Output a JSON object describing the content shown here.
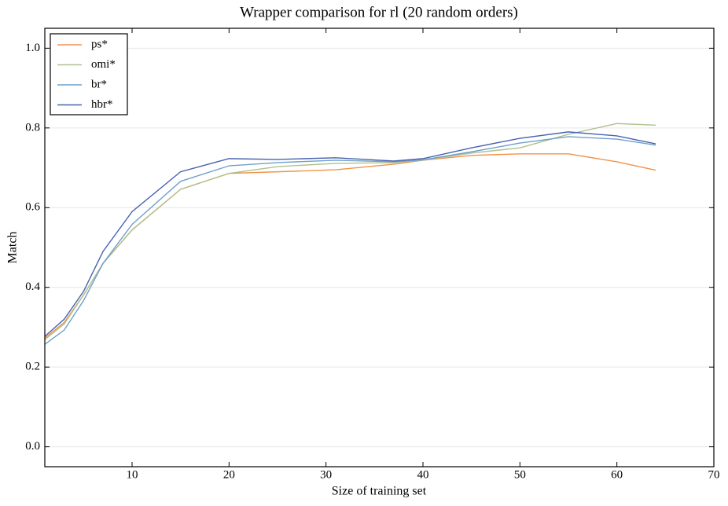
{
  "chart_data": {
    "type": "line",
    "title": "Wrapper comparison for rl (20 random orders)",
    "x_label": "Size of training set",
    "y_label": "Match",
    "x": [
      1,
      3,
      5,
      7,
      10,
      15,
      20,
      25,
      31,
      37,
      40,
      45,
      50,
      55,
      60,
      64
    ],
    "series": [
      {
        "name": "ps*",
        "color": "#f0924b",
        "values": [
          0.273,
          0.312,
          0.381,
          0.46,
          0.544,
          0.646,
          0.686,
          0.69,
          0.695,
          0.709,
          0.719,
          0.731,
          0.735,
          0.735,
          0.715,
          0.694
        ]
      },
      {
        "name": "omi*",
        "color": "#b0c18e",
        "values": [
          0.269,
          0.308,
          0.381,
          0.46,
          0.544,
          0.646,
          0.686,
          0.703,
          0.711,
          0.713,
          0.719,
          0.737,
          0.75,
          0.784,
          0.811,
          0.807
        ]
      },
      {
        "name": "br*",
        "color": "#6fa0cb",
        "values": [
          0.257,
          0.293,
          0.367,
          0.46,
          0.558,
          0.666,
          0.705,
          0.713,
          0.719,
          0.715,
          0.72,
          0.74,
          0.762,
          0.778,
          0.772,
          0.757
        ]
      },
      {
        "name": "hbr*",
        "color": "#4863ae",
        "values": [
          0.277,
          0.32,
          0.39,
          0.49,
          0.59,
          0.69,
          0.723,
          0.721,
          0.725,
          0.717,
          0.723,
          0.75,
          0.774,
          0.79,
          0.78,
          0.76
        ]
      }
    ],
    "xlim": [
      1,
      70
    ],
    "xticks": [
      10,
      20,
      30,
      40,
      50,
      60,
      70
    ],
    "ylim": [
      -0.05,
      1.05
    ],
    "yticks": [
      {
        "value": 0,
        "label": "0.0"
      },
      0.2,
      0.4,
      0.6,
      0.8,
      {
        "value": 1,
        "label": "1.0"
      }
    ],
    "grid": true,
    "legend": "upper-left"
  }
}
